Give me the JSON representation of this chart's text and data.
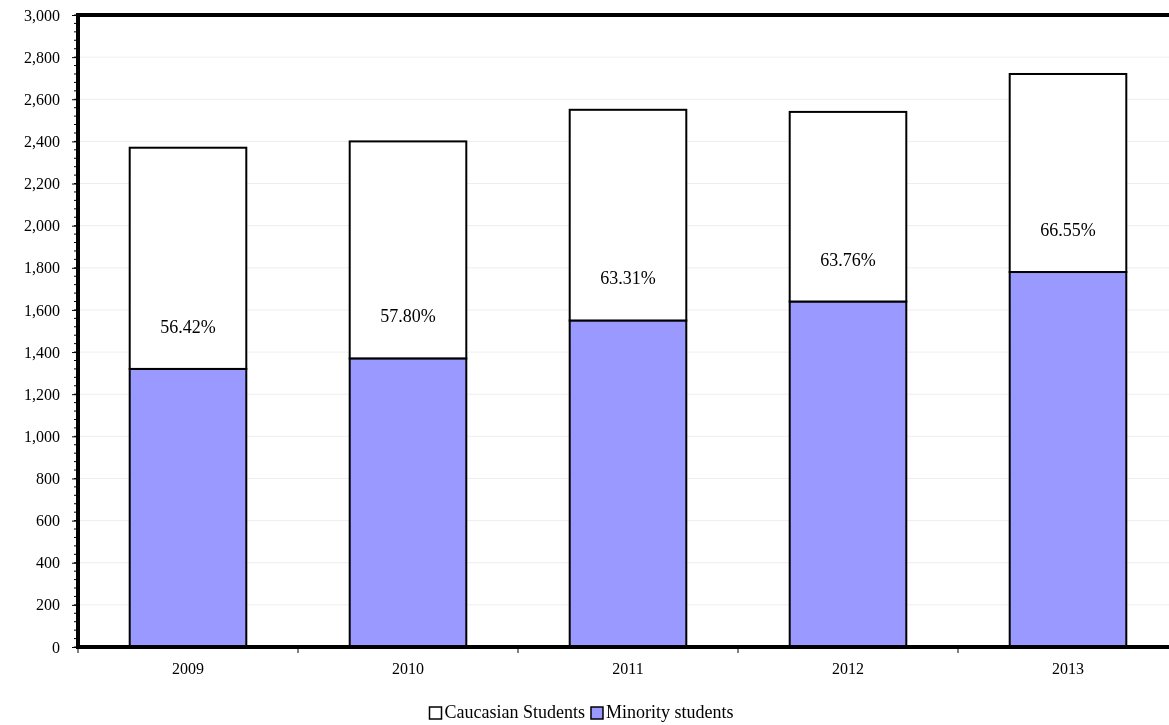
{
  "chart_data": {
    "type": "bar",
    "stacked": true,
    "categories": [
      "2009",
      "2010",
      "2011",
      "2012",
      "2013"
    ],
    "series": [
      {
        "name": "Minority students",
        "color": "#9999ff",
        "values": [
          1320,
          1370,
          1550,
          1640,
          1780
        ]
      },
      {
        "name": "Caucasian Students",
        "color": "#ffffff",
        "values": [
          1050,
          1030,
          1000,
          900,
          940
        ]
      }
    ],
    "ylim": [
      0,
      3000
    ],
    "yticks": [
      0,
      {
        "value": 200,
        "label": "200"
      },
      {
        "value": 400,
        "label": "400"
      },
      {
        "value": 600,
        "label": "600"
      },
      {
        "value": 800,
        "label": "800"
      },
      {
        "value": 1000,
        "label": "1,000"
      },
      {
        "value": 1200,
        "label": "1,200"
      },
      {
        "value": 1400,
        "label": "1,400"
      },
      {
        "value": 1600,
        "label": "1,600"
      },
      {
        "value": 1800,
        "label": "1,800"
      },
      {
        "value": 2000,
        "label": "2,000"
      },
      {
        "value": 2200,
        "label": "2,200"
      },
      {
        "value": 2400,
        "label": "2,400"
      },
      {
        "value": 2600,
        "label": "2,600"
      },
      {
        "value": 2800,
        "label": "2,800"
      },
      {
        "value": 3000,
        "label": "3,000"
      }
    ],
    "grid": "y",
    "legend": "bottom",
    "annotations": [
      "56.42%",
      "57.80%",
      "63.31%",
      "63.76%",
      "66.55%"
    ]
  }
}
